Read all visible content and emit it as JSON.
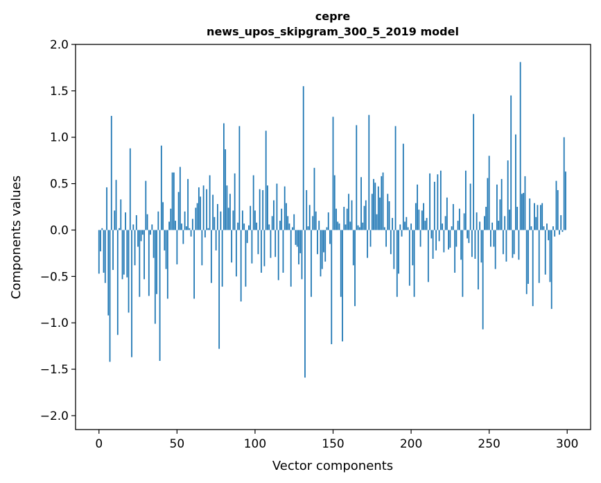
{
  "chart_data": {
    "type": "bar",
    "title_lines": [
      "cepre",
      "news_upos_skipgram_300_5_2019 model"
    ],
    "xlabel": "Vector components",
    "ylabel": "Components values",
    "xlim": [
      -15,
      315
    ],
    "ylim": [
      -2.15,
      2.0
    ],
    "xticks": [
      0,
      50,
      100,
      150,
      200,
      250,
      300
    ],
    "xtick_labels": [
      "0",
      "50",
      "100",
      "150",
      "200",
      "250",
      "300"
    ],
    "yticks": [
      -2.0,
      -1.5,
      -1.0,
      -0.5,
      0.0,
      0.5,
      1.0,
      1.5,
      2.0
    ],
    "ytick_labels": [
      "−2.0",
      "−1.5",
      "−1.0",
      "−0.5",
      "0.0",
      "0.5",
      "1.0",
      "1.5",
      "2.0"
    ],
    "bar_color": "#1f77b4",
    "grid": false,
    "x": "0..299 (component index)",
    "values": [
      -0.47,
      -0.23,
      0.02,
      -0.46,
      -0.57,
      0.46,
      -0.92,
      -1.42,
      1.23,
      -0.43,
      0.21,
      0.54,
      -1.13,
      0.02,
      0.33,
      -0.53,
      -0.48,
      0.19,
      -0.51,
      -0.89,
      0.88,
      -1.37,
      0.06,
      -0.38,
      0.16,
      -0.18,
      -0.72,
      -0.12,
      -0.05,
      -0.53,
      0.53,
      0.17,
      -0.71,
      -0.05,
      0.06,
      -0.3,
      -1.01,
      -0.69,
      0.2,
      -1.41,
      0.91,
      0.3,
      -0.22,
      -0.42,
      -0.74,
      0.09,
      0.23,
      0.62,
      0.62,
      0.1,
      -0.37,
      0.41,
      0.68,
      0.07,
      -0.15,
      0.2,
      0.04,
      0.55,
      0.02,
      -0.07,
      0.12,
      -0.74,
      0.24,
      0.29,
      0.46,
      0.36,
      -0.38,
      0.48,
      -0.08,
      0.44,
      0.02,
      0.59,
      -0.57,
      0.38,
      0.14,
      -0.22,
      0.28,
      -1.28,
      0.2,
      -0.61,
      1.15,
      0.87,
      0.48,
      0.24,
      0.39,
      -0.35,
      0.21,
      0.61,
      -0.5,
      0.08,
      1.12,
      -0.77,
      0.21,
      0.07,
      -0.61,
      -0.14,
      0.05,
      0.26,
      -0.36,
      0.59,
      0.21,
      0.08,
      -0.26,
      0.44,
      -0.46,
      0.43,
      -0.39,
      1.07,
      0.48,
      0.06,
      -0.3,
      0.15,
      0.32,
      -0.29,
      0.5,
      -0.54,
      0.1,
      0.23,
      -0.46,
      0.47,
      0.29,
      0.15,
      0.07,
      -0.61,
      0.03,
      0.17,
      -0.16,
      -0.18,
      -0.37,
      -0.25,
      -0.53,
      1.55,
      -1.59,
      0.43,
      0.04,
      0.27,
      -0.72,
      0.15,
      0.67,
      0.2,
      -0.26,
      0.1,
      -0.5,
      -0.42,
      -0.24,
      -0.34,
      0.03,
      0.19,
      -0.15,
      -1.23,
      1.22,
      0.59,
      0.23,
      0.09,
      0.07,
      -0.72,
      -1.2,
      0.25,
      0.06,
      0.23,
      0.39,
      0.09,
      0.32,
      -0.38,
      -0.82,
      1.13,
      0.05,
      0.03,
      0.57,
      0.08,
      0.26,
      0.32,
      -0.3,
      1.24,
      -0.18,
      0.39,
      0.55,
      0.51,
      0.17,
      0.47,
      0.35,
      0.58,
      0.62,
      0.03,
      -0.18,
      0.39,
      0.31,
      -0.26,
      0.13,
      -0.42,
      1.12,
      -0.72,
      -0.47,
      0.06,
      -0.07,
      0.93,
      0.09,
      0.14,
      0.03,
      -0.6,
      0.07,
      -0.38,
      -0.72,
      0.29,
      0.49,
      0.22,
      -0.18,
      0.21,
      0.29,
      0.1,
      0.13,
      -0.56,
      0.61,
      -0.09,
      -0.31,
      0.52,
      -0.22,
      0.6,
      -0.12,
      0.64,
      0.07,
      -0.24,
      0.15,
      0.35,
      -0.21,
      -0.19,
      0.04,
      0.28,
      -0.46,
      -0.18,
      0.1,
      0.23,
      -0.32,
      -0.72,
      0.18,
      0.64,
      -0.09,
      -0.14,
      0.5,
      -0.29,
      1.25,
      -0.31,
      0.19,
      -0.64,
      0.09,
      -0.35,
      -1.07,
      0.15,
      0.25,
      0.56,
      0.8,
      -0.18,
      0.08,
      -0.18,
      -0.42,
      0.49,
      0.1,
      0.33,
      0.55,
      -0.26,
      0.15,
      -0.34,
      0.75,
      0.22,
      1.45,
      -0.3,
      -0.26,
      1.03,
      0.25,
      -0.32,
      1.81,
      0.39,
      0.4,
      0.58,
      -0.69,
      -0.58,
      0.34,
      0.04,
      -0.82,
      0.29,
      0.14,
      0.27,
      -0.57,
      0.27,
      0.29,
      0.04,
      -0.48,
      0.07,
      -0.11,
      -0.56,
      -0.85,
      0.04,
      -0.07,
      0.53,
      0.43,
      -0.05,
      0.16,
      -0.02,
      1.0,
      0.63
    ]
  }
}
